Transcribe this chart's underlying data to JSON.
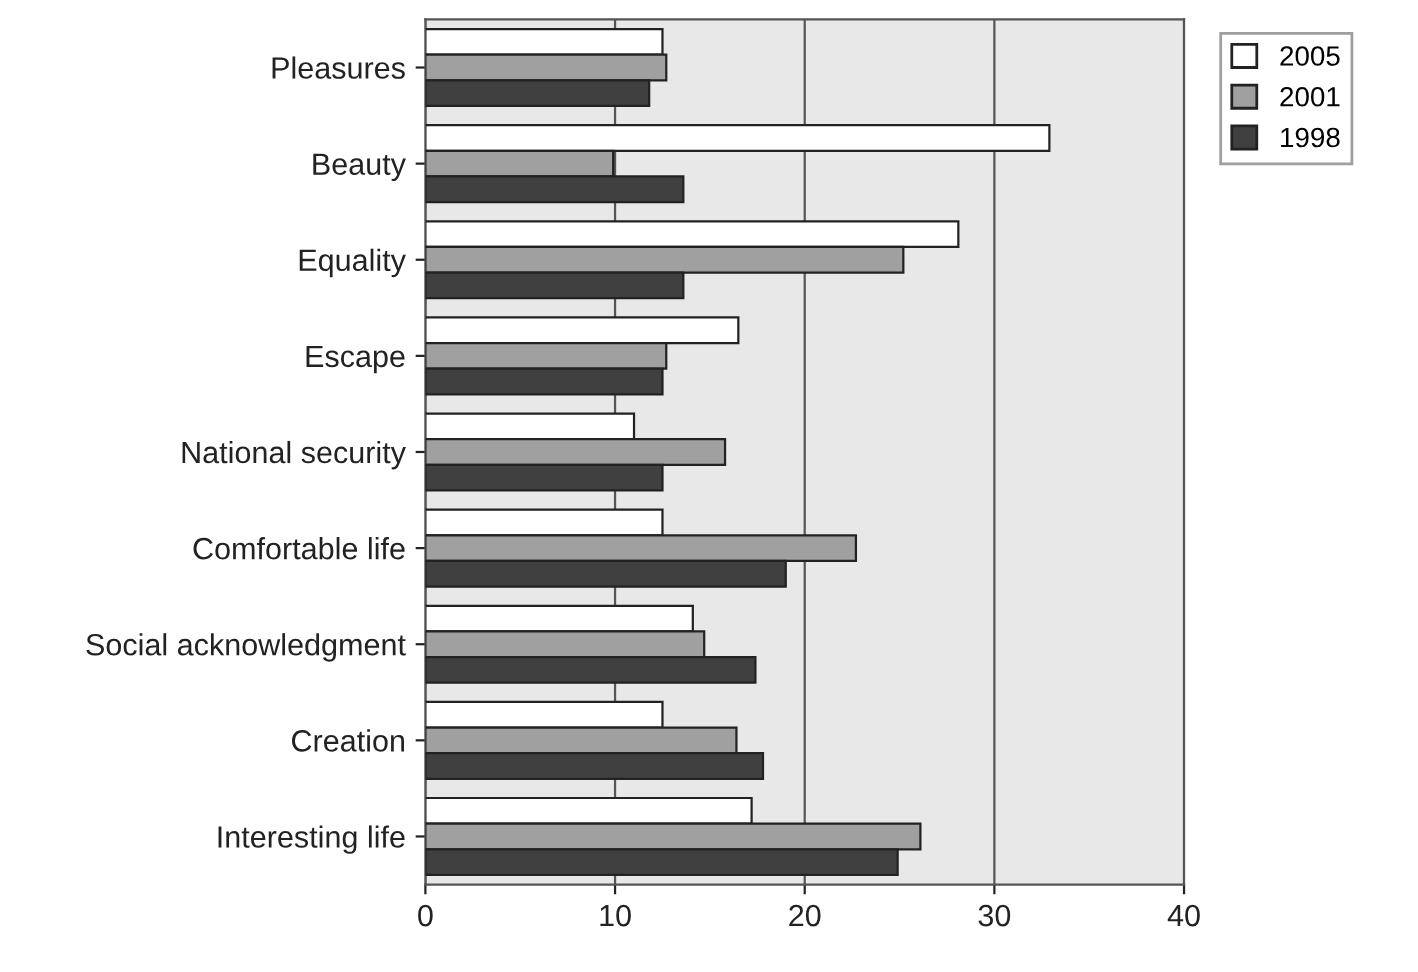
{
  "chart_data": {
    "type": "bar",
    "orientation": "horizontal",
    "categories": [
      "Pleasures",
      "Beauty",
      "Equality",
      "Escape",
      "National security",
      "Comfortable life",
      "Social acknowledgment",
      "Creation",
      "Interesting life"
    ],
    "series": [
      {
        "name": "2005",
        "color": "#ffffff",
        "values": [
          12.5,
          32.9,
          28.1,
          16.5,
          11.0,
          12.5,
          14.1,
          12.5,
          17.2
        ]
      },
      {
        "name": "2001",
        "color": "#a0a0a0",
        "values": [
          12.7,
          9.9,
          25.2,
          12.7,
          15.8,
          22.7,
          14.7,
          16.4,
          26.1
        ]
      },
      {
        "name": "1998",
        "color": "#404040",
        "values": [
          11.8,
          13.6,
          13.6,
          12.5,
          12.5,
          19.0,
          17.4,
          17.8,
          24.9
        ]
      }
    ],
    "xlim": [
      0,
      40
    ],
    "xticks": [
      0,
      10,
      20,
      30,
      40
    ],
    "grid": "x",
    "legend": "top right"
  }
}
